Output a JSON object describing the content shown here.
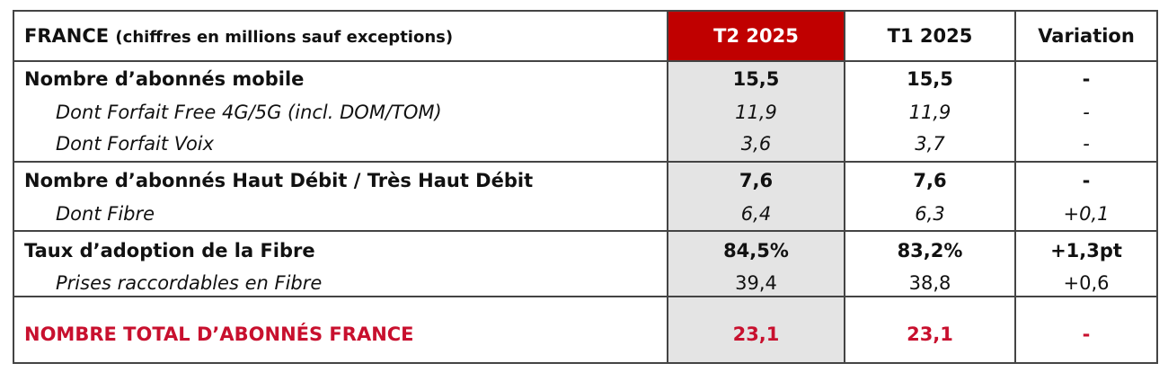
{
  "header": {
    "title": "FRANCE",
    "subtitle": "(chiffres en millions sauf exceptions)",
    "columns": [
      "T2 2025",
      "T1 2025",
      "Variation"
    ]
  },
  "table": {
    "rows": [
      [
        "Nombre d’abonnés mobile",
        "15,5",
        "15,5",
        "-"
      ],
      [
        "Dont Forfait Free 4G/5G (incl. DOM/TOM)",
        "11,9",
        "11,9",
        "-"
      ],
      [
        "Dont Forfait Voix",
        "3,6",
        "3,7",
        "-"
      ],
      [
        "Nombre d’abonnés Haut Débit / Très Haut Débit",
        "7,6",
        "7,6",
        "-"
      ],
      [
        "Dont Fibre",
        "6,4",
        "6,3",
        "+0,1"
      ],
      [
        "Taux d’adoption de la Fibre",
        "84,5%",
        "83,2%",
        "+1,3pt"
      ],
      [
        "Prises raccordables en Fibre",
        "39,4",
        "38,8",
        "+0,6"
      ],
      [
        "NOMBRE TOTAL D’ABONNÉS FRANCE",
        "23,1",
        "23,1",
        "-"
      ]
    ]
  }
}
